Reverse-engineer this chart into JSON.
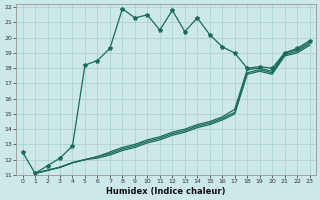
{
  "xlabel": "Humidex (Indice chaleur)",
  "xlim": [
    -0.5,
    23.5
  ],
  "ylim": [
    11,
    22.2
  ],
  "xticks": [
    0,
    1,
    2,
    3,
    4,
    5,
    6,
    7,
    8,
    9,
    10,
    11,
    12,
    13,
    14,
    15,
    16,
    17,
    18,
    19,
    20,
    21,
    22,
    23
  ],
  "yticks": [
    11,
    12,
    13,
    14,
    15,
    16,
    17,
    18,
    19,
    20,
    21,
    22
  ],
  "line_color": "#1a6b5a",
  "bg_color": "#cde8e8",
  "grid_color": "#aacece",
  "line1_x": [
    0,
    1,
    2,
    3,
    4,
    5,
    6,
    7,
    8,
    9,
    10,
    11,
    12,
    13,
    14,
    15,
    16,
    17,
    18,
    19,
    20,
    21,
    22,
    23
  ],
  "line1_y": [
    12.5,
    11.1,
    11.6,
    12.1,
    12.9,
    18.2,
    18.5,
    19.3,
    21.9,
    21.3,
    21.5,
    20.5,
    21.8,
    20.4,
    21.3,
    20.2,
    19.4,
    19.0,
    18.0,
    18.1,
    18.0,
    19.0,
    19.3,
    19.8
  ],
  "line2_x": [
    1,
    2,
    3,
    4,
    5,
    6,
    7,
    8,
    9,
    10,
    11,
    12,
    13,
    14,
    15,
    16,
    17,
    18,
    19,
    20,
    21,
    22,
    23
  ],
  "line2_y": [
    11.1,
    11.3,
    11.5,
    11.8,
    12.0,
    12.2,
    12.5,
    12.8,
    13.0,
    13.3,
    13.5,
    13.8,
    14.0,
    14.3,
    14.5,
    14.8,
    15.3,
    17.9,
    18.0,
    17.8,
    19.0,
    19.2,
    19.7
  ],
  "line3_x": [
    1,
    2,
    3,
    4,
    5,
    6,
    7,
    8,
    9,
    10,
    11,
    12,
    13,
    14,
    15,
    16,
    17,
    18,
    19,
    20,
    21,
    22,
    23
  ],
  "line3_y": [
    11.1,
    11.3,
    11.5,
    11.8,
    12.0,
    12.2,
    12.4,
    12.7,
    12.9,
    13.2,
    13.4,
    13.7,
    13.9,
    14.2,
    14.4,
    14.7,
    15.1,
    17.7,
    17.9,
    17.7,
    18.9,
    19.1,
    19.6
  ],
  "line4_x": [
    1,
    2,
    3,
    4,
    5,
    6,
    7,
    8,
    9,
    10,
    11,
    12,
    13,
    14,
    15,
    16,
    17,
    18,
    19,
    20,
    21,
    22,
    23
  ],
  "line4_y": [
    11.1,
    11.3,
    11.5,
    11.8,
    12.0,
    12.1,
    12.3,
    12.6,
    12.8,
    13.1,
    13.3,
    13.6,
    13.8,
    14.1,
    14.3,
    14.6,
    15.0,
    17.6,
    17.8,
    17.6,
    18.8,
    19.0,
    19.5
  ]
}
